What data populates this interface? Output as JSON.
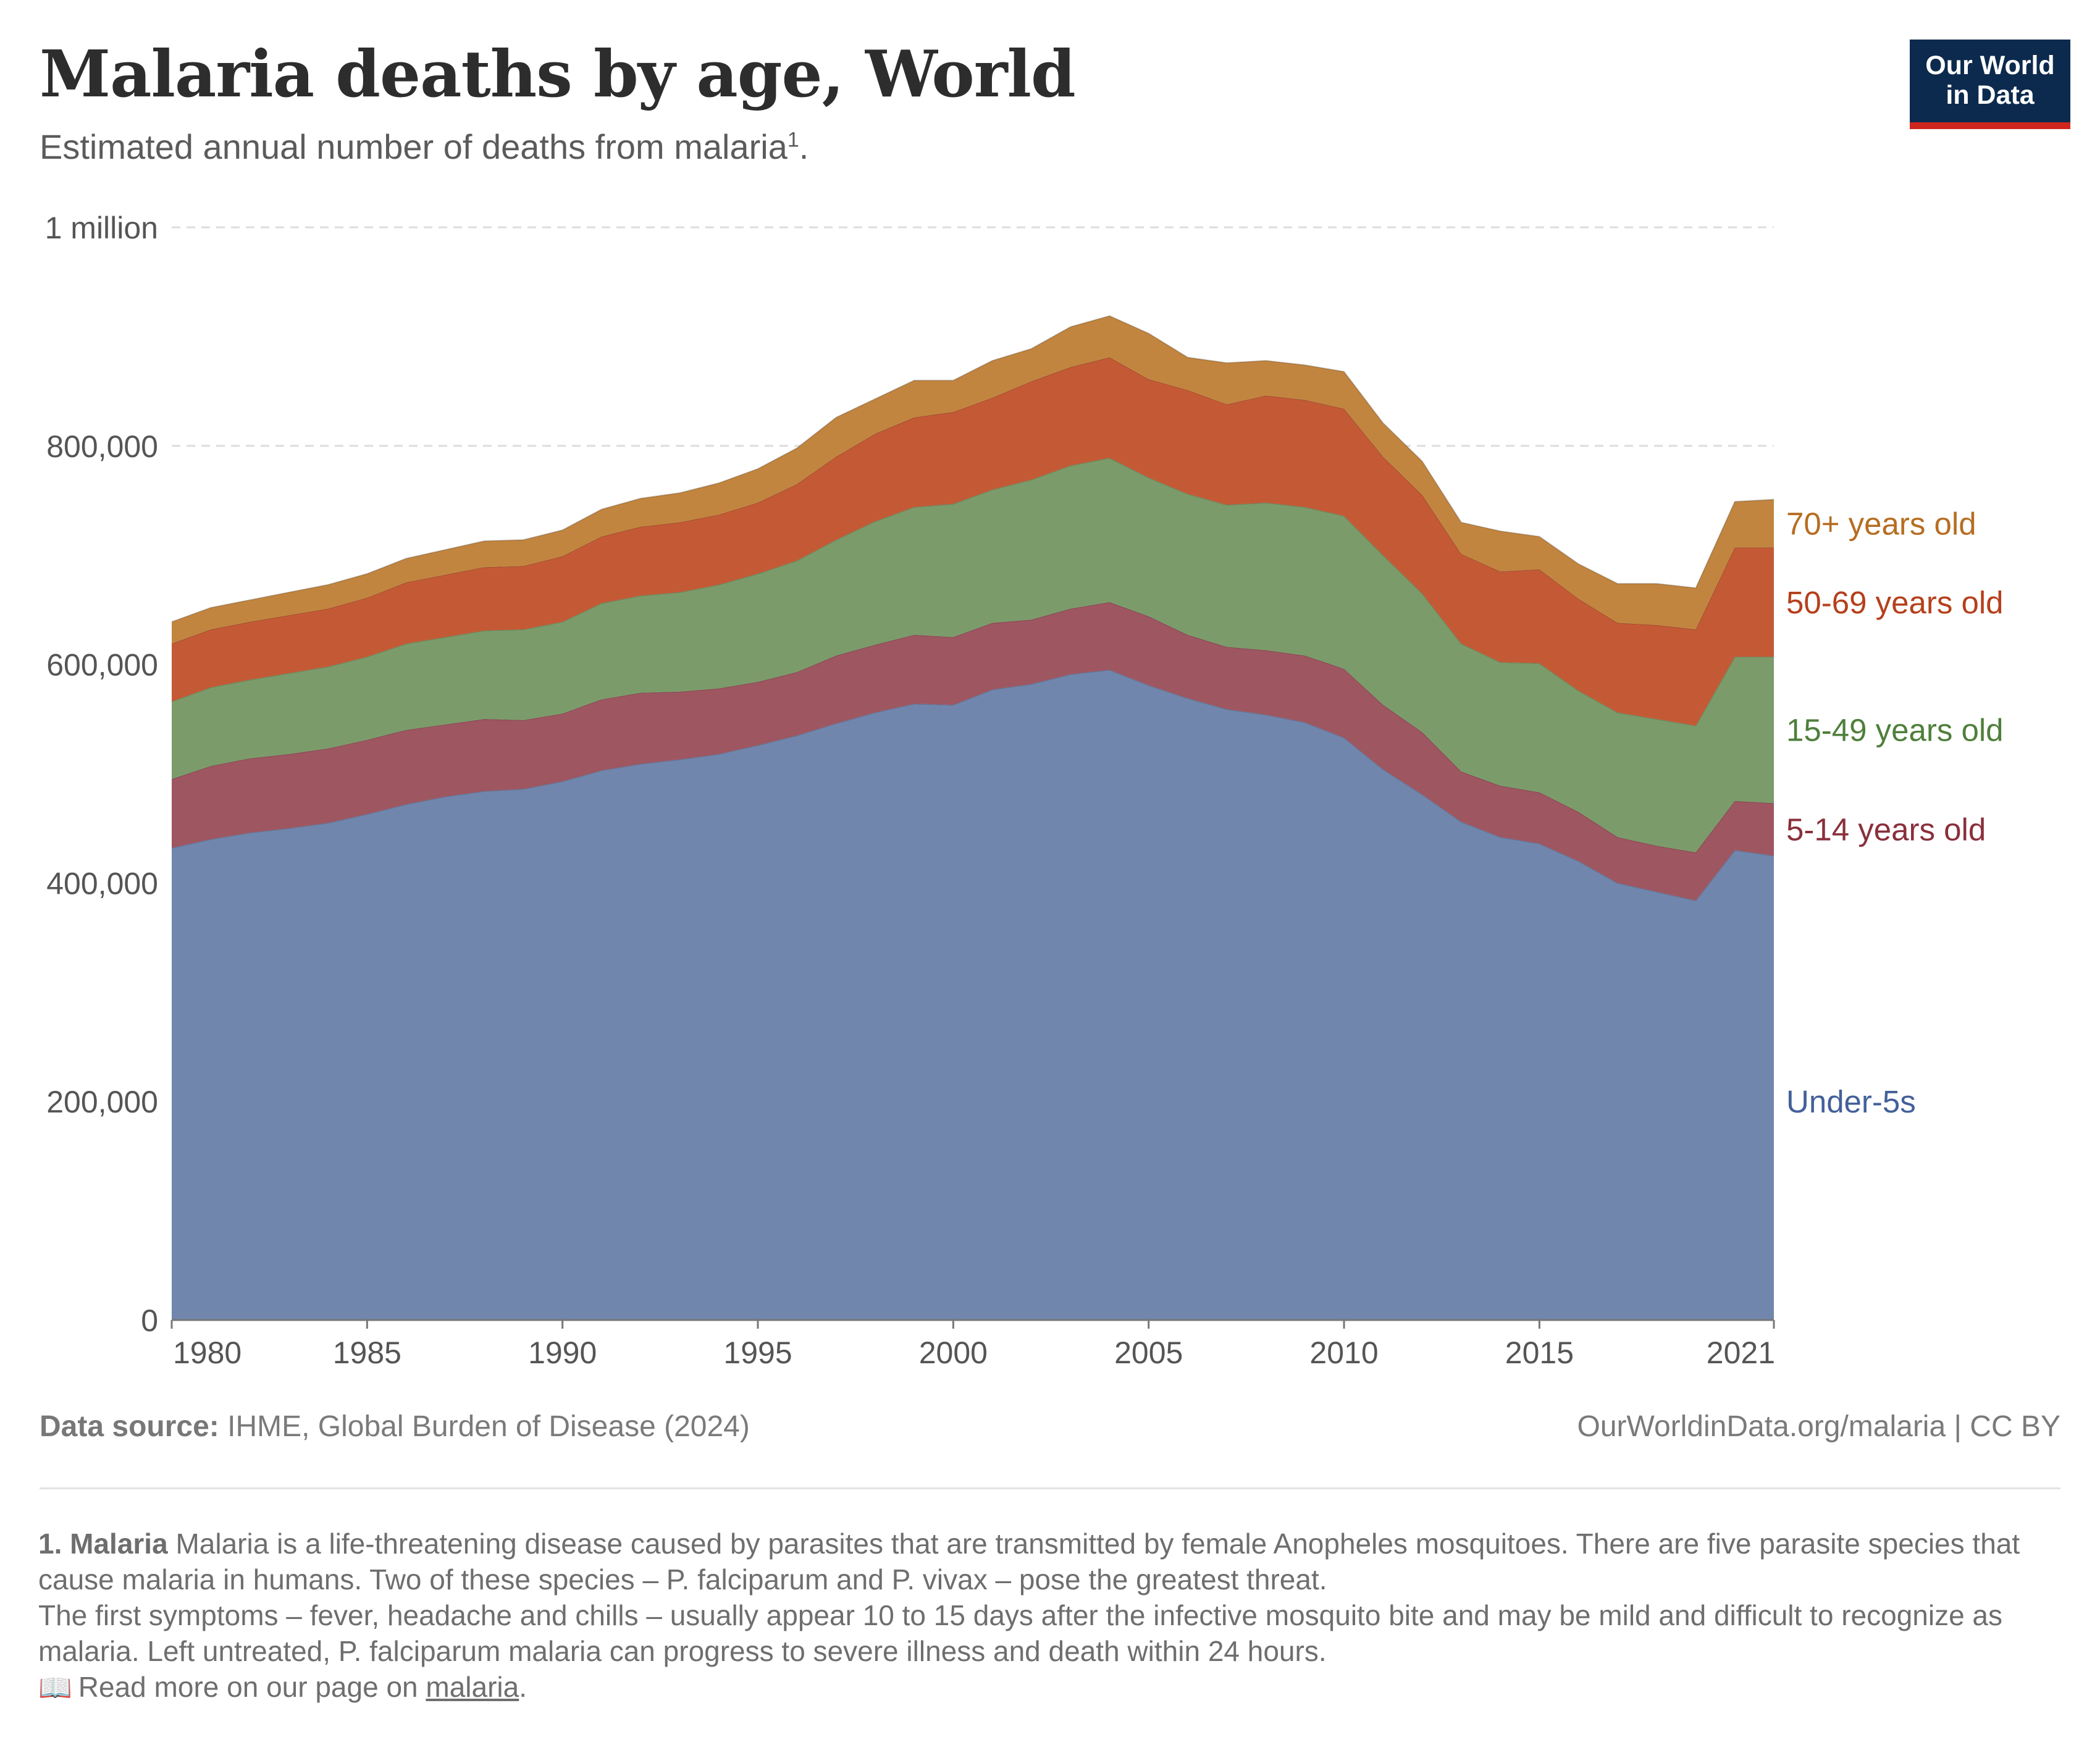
{
  "header": {
    "title": "Malaria deaths by age, World",
    "subtitle": "Estimated annual number of deaths from malaria",
    "subtitle_sup": "1",
    "subtitle_end": "."
  },
  "logo": {
    "line1": "Our World",
    "line2": "in Data"
  },
  "footer": {
    "source_label": "Data source:",
    "source_text": "IHME, Global Burden of Disease (2024)",
    "url_license": "OurWorldinData.org/malaria | CC BY"
  },
  "notes": {
    "term": "1. Malaria",
    "line1": "Malaria is a life-threatening disease caused by parasites that are transmitted by female Anopheles mosquitoes. There are five parasite species that cause malaria in humans. Two of these species – P. falciparum and P. vivax – pose the greatest threat.",
    "line2": "The first symptoms – fever, headache and chills – usually appear 10 to 15 days after the infective mosquito bite and may be mild and difficult to recognize as malaria. Left untreated, P. falciparum malaria can progress to severe illness and death within 24 hours.",
    "read_more_prefix": "Read more on our page on",
    "read_more_link": "malaria",
    "read_more_suffix": "."
  },
  "colors": {
    "under5": "#7186ad",
    "age5_14": "#9e5661",
    "age15_49": "#7b9c6a",
    "age50_69": "#c45a35",
    "age70": "#c2853f",
    "label_under5": "#43609a",
    "label_5_14": "#8a2f3b",
    "label_15_49": "#4f7f3b",
    "label_50_69": "#b5401c",
    "label_70": "#b66d22",
    "grid": "#dddddd",
    "axis_text": "#555555"
  },
  "chart_data": {
    "type": "area",
    "stacked": true,
    "title": "Malaria deaths by age, World",
    "xlabel": "",
    "ylabel": "",
    "xlim": [
      1980,
      2021
    ],
    "ylim": [
      0,
      1000000
    ],
    "y_ticks": [
      0,
      200000,
      400000,
      600000,
      800000,
      1000000
    ],
    "y_tick_labels": [
      "0",
      "200,000",
      "400,000",
      "600,000",
      "800,000",
      "1 million"
    ],
    "x_ticks": [
      1980,
      1985,
      1990,
      1995,
      2000,
      2005,
      2010,
      2015,
      2021
    ],
    "x_tick_labels": [
      "1980",
      "1985",
      "1990",
      "1995",
      "2000",
      "2005",
      "2010",
      "2015",
      "2021"
    ],
    "x": [
      1980,
      1981,
      1982,
      1983,
      1984,
      1985,
      1986,
      1987,
      1988,
      1989,
      1990,
      1991,
      1992,
      1993,
      1994,
      1995,
      1996,
      1997,
      1998,
      1999,
      2000,
      2001,
      2002,
      2003,
      2004,
      2005,
      2006,
      2007,
      2008,
      2009,
      2010,
      2011,
      2012,
      2013,
      2014,
      2015,
      2016,
      2017,
      2018,
      2019,
      2020,
      2021
    ],
    "series": [
      {
        "name": "Under-5s",
        "values": [
          432000,
          440000,
          446000,
          450000,
          455000,
          463000,
          472000,
          479000,
          484000,
          486000,
          493000,
          503000,
          509000,
          513000,
          518000,
          526000,
          535000,
          546000,
          556000,
          564000,
          563000,
          577000,
          582000,
          591000,
          595000,
          581000,
          569000,
          559000,
          554000,
          547000,
          533000,
          504000,
          481000,
          456000,
          442000,
          436000,
          420000,
          400000,
          392000,
          384000,
          430000,
          425000
        ]
      },
      {
        "name": "5-14 years old",
        "values": [
          63000,
          67000,
          68000,
          68000,
          68000,
          68000,
          68000,
          66000,
          66000,
          63000,
          62000,
          65000,
          65000,
          62000,
          60000,
          58000,
          58000,
          62000,
          62000,
          63000,
          62000,
          61000,
          59000,
          60000,
          62000,
          63000,
          58000,
          57000,
          59000,
          61000,
          63000,
          59000,
          57000,
          46000,
          47000,
          47000,
          45000,
          42000,
          42000,
          44000,
          45000,
          48000
        ]
      },
      {
        "name": "15-49 years old",
        "values": [
          71000,
          72000,
          72000,
          74000,
          75000,
          76000,
          79000,
          80000,
          81000,
          83000,
          84000,
          88000,
          89000,
          91000,
          95000,
          99000,
          102000,
          106000,
          113000,
          117000,
          122000,
          122000,
          128000,
          131000,
          132000,
          127000,
          129000,
          130000,
          135000,
          136000,
          140000,
          137000,
          127000,
          117000,
          113000,
          118000,
          111000,
          114000,
          116000,
          116000,
          132000,
          134000
        ]
      },
      {
        "name": "50-69 years old",
        "values": [
          53000,
          53000,
          53000,
          53000,
          53000,
          54000,
          56000,
          57000,
          58000,
          58000,
          60000,
          61000,
          63000,
          64000,
          64000,
          65000,
          70000,
          76000,
          80000,
          82000,
          84000,
          84000,
          90000,
          90000,
          92000,
          90000,
          95000,
          92000,
          98000,
          98000,
          98000,
          90000,
          90000,
          82000,
          83000,
          86000,
          84000,
          82000,
          86000,
          88000,
          100000,
          100000
        ]
      },
      {
        "name": "70+ years old",
        "values": [
          20000,
          20000,
          20000,
          21000,
          22000,
          22000,
          22000,
          23000,
          24000,
          24000,
          24000,
          25000,
          26000,
          27000,
          29000,
          31000,
          33000,
          36000,
          32000,
          34000,
          29000,
          34000,
          30000,
          37000,
          38000,
          42000,
          30000,
          38000,
          32000,
          32000,
          34000,
          31000,
          31000,
          29000,
          37000,
          30000,
          32000,
          36000,
          38000,
          38000,
          42000,
          44000
        ]
      }
    ],
    "legend_placement": "right-inline"
  }
}
